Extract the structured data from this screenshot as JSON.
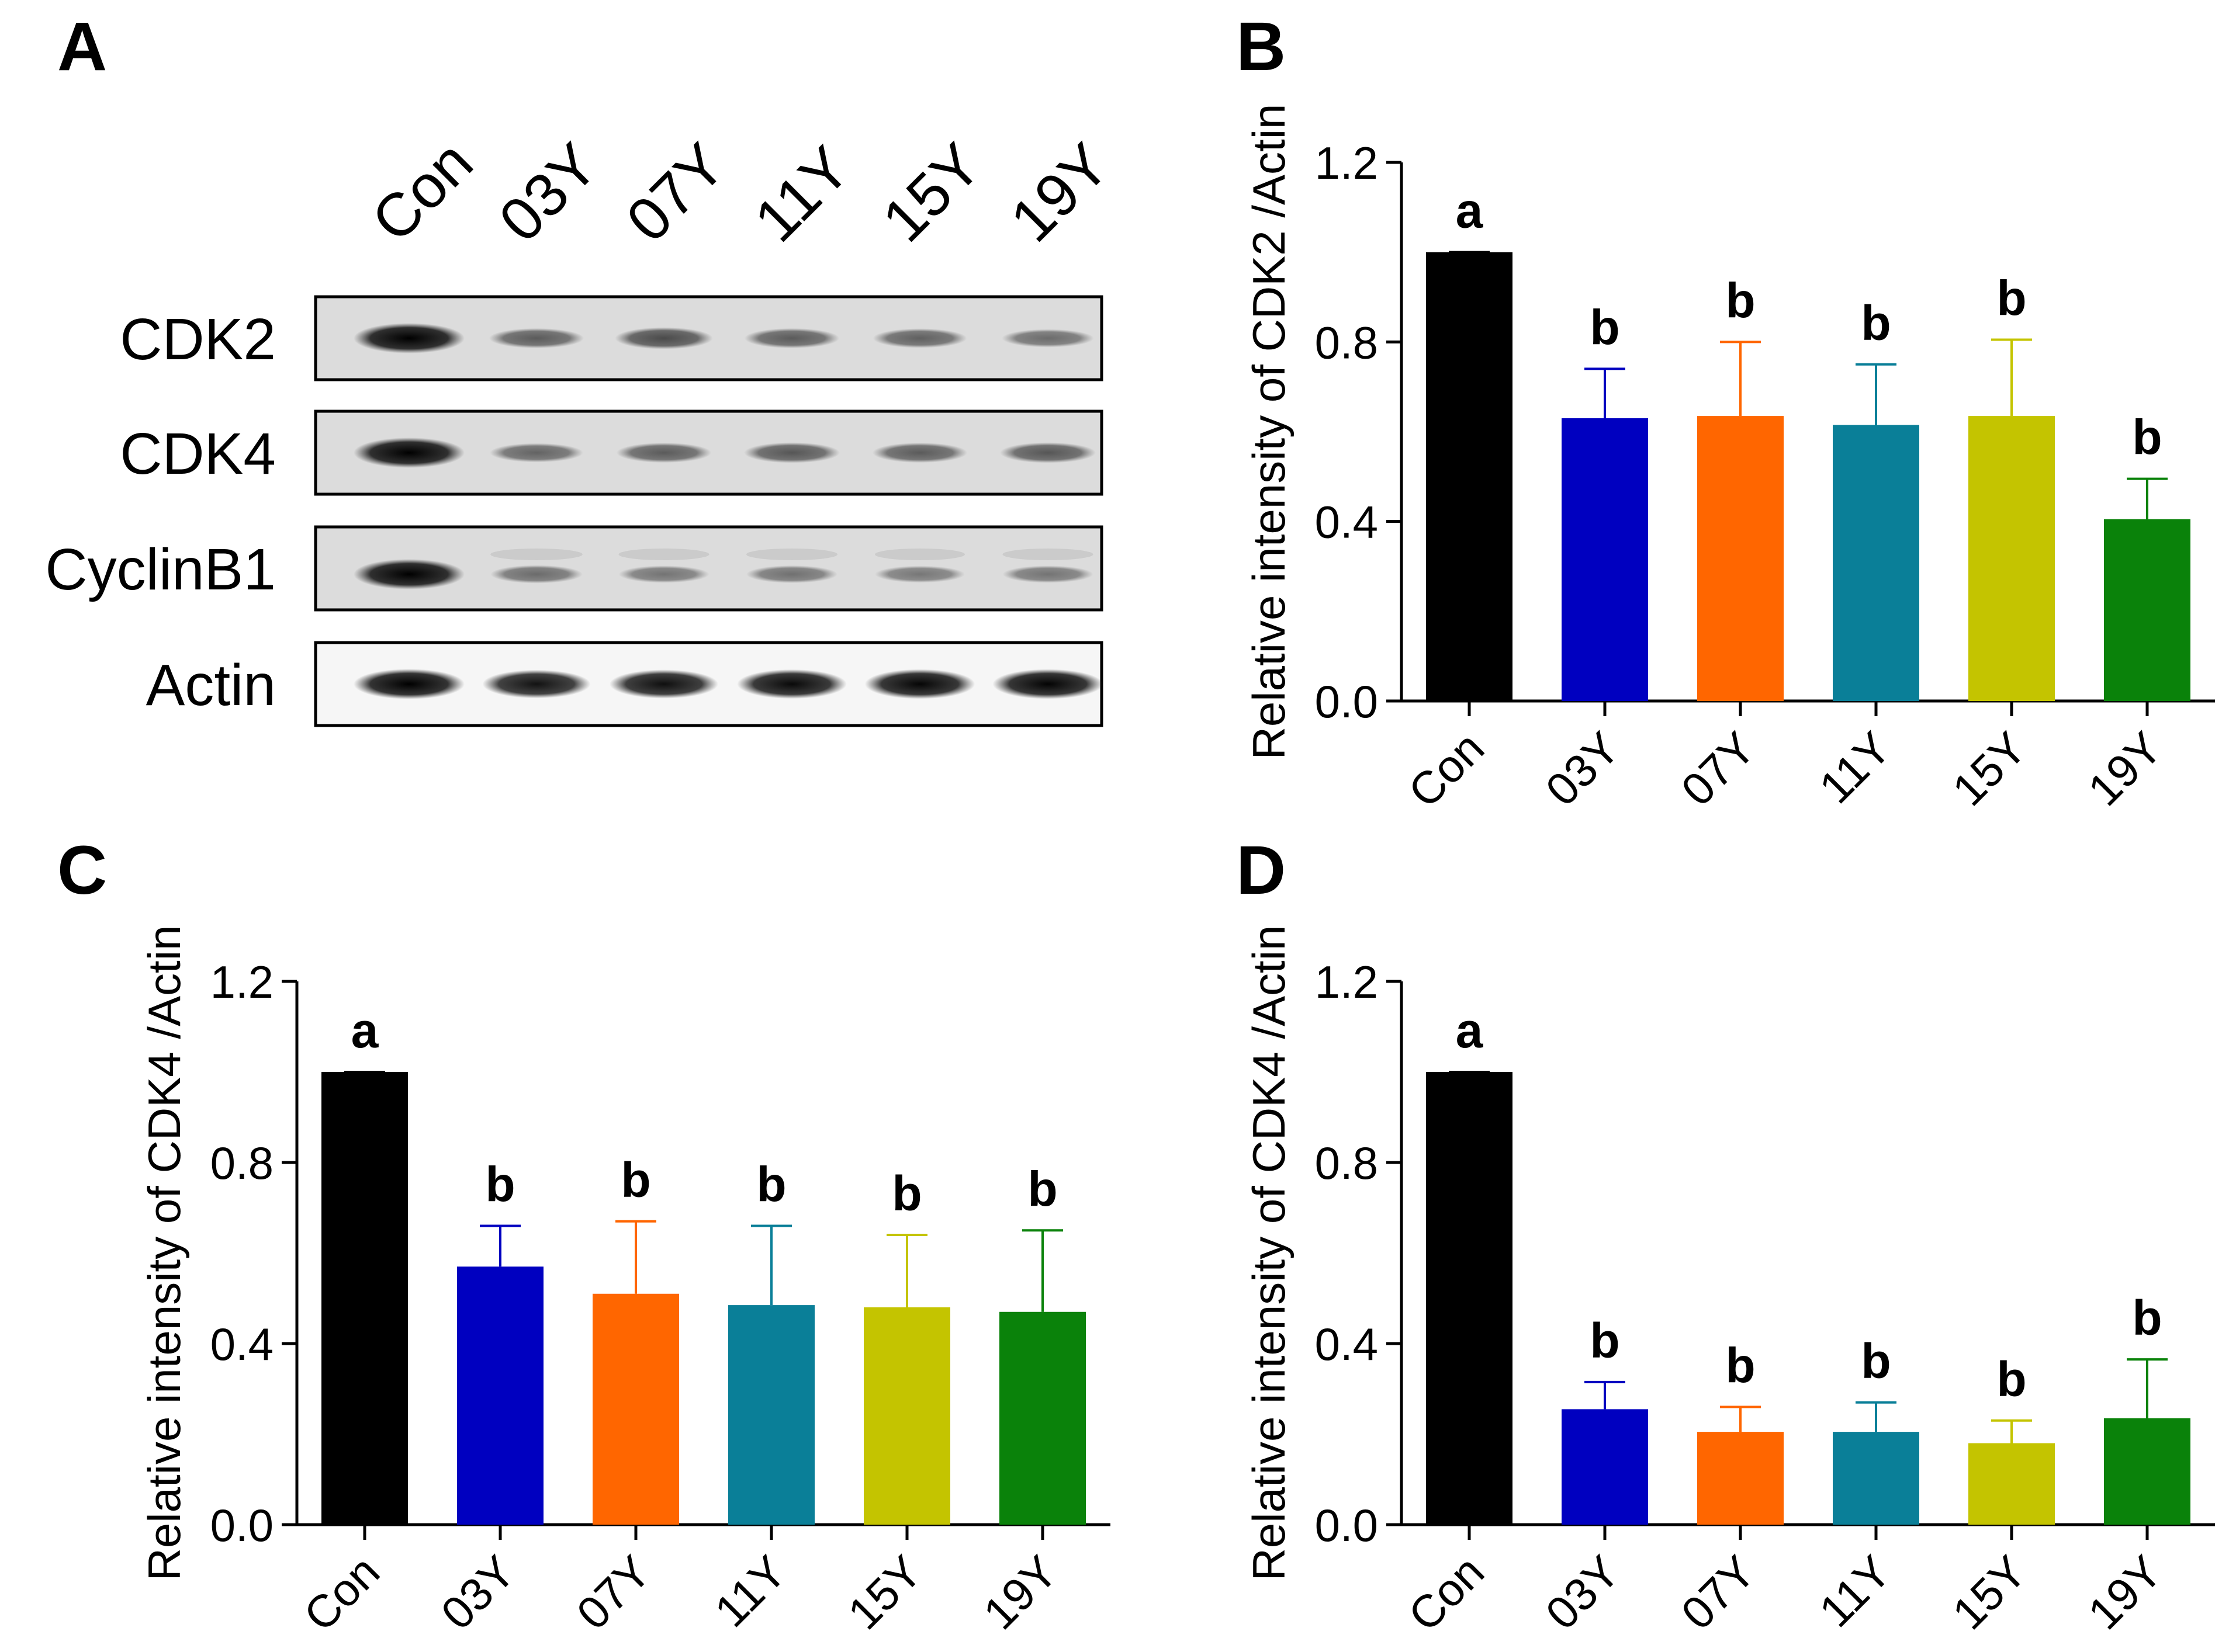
{
  "panel_labels": [
    "A",
    "B",
    "C",
    "D"
  ],
  "blot": {
    "lanes": [
      "Con",
      "03Y",
      "07Y",
      "11Y",
      "15Y",
      "19Y"
    ],
    "rows": [
      {
        "label": "CDK2",
        "intensity": [
          1.0,
          0.45,
          0.55,
          0.45,
          0.42,
          0.35
        ]
      },
      {
        "label": "CDK4",
        "intensity": [
          1.0,
          0.4,
          0.45,
          0.48,
          0.45,
          0.48
        ]
      },
      {
        "label": "CyclinB1",
        "intensity": [
          1.0,
          0.35,
          0.3,
          0.32,
          0.28,
          0.3
        ]
      },
      {
        "label": "Actin",
        "intensity": [
          1.0,
          0.9,
          0.92,
          0.95,
          0.97,
          0.98
        ]
      }
    ]
  },
  "colors": [
    "#000000",
    "#0000c0",
    "#ff6600",
    "#0a7f98",
    "#c4c400",
    "#0a820a"
  ],
  "chart_data": [
    {
      "panel": "B",
      "type": "bar",
      "ylabel": "Relative intensity of CDK2 /Actin",
      "categories": [
        "Con",
        "03Y",
        "07Y",
        "11Y",
        "15Y",
        "19Y"
      ],
      "values": [
        1.0,
        0.63,
        0.635,
        0.615,
        0.635,
        0.405
      ],
      "errors": [
        0.0,
        0.11,
        0.165,
        0.135,
        0.17,
        0.09
      ],
      "significance": [
        "a",
        "b",
        "b",
        "b",
        "b",
        "b"
      ],
      "ylim": [
        0,
        1.2
      ],
      "yticks": [
        "0.0",
        "0.4",
        "0.8",
        "1.2"
      ]
    },
    {
      "panel": "C",
      "type": "bar",
      "ylabel": "Relative intensity of CDK4 /Actin",
      "categories": [
        "Con",
        "03Y",
        "07Y",
        "11Y",
        "15Y",
        "19Y"
      ],
      "values": [
        1.0,
        0.57,
        0.51,
        0.485,
        0.48,
        0.47
      ],
      "errors": [
        0.0,
        0.09,
        0.16,
        0.175,
        0.16,
        0.18
      ],
      "significance": [
        "a",
        "b",
        "b",
        "b",
        "b",
        "b"
      ],
      "ylim": [
        0,
        1.2
      ],
      "yticks": [
        "0.0",
        "0.4",
        "0.8",
        "1.2"
      ]
    },
    {
      "panel": "D",
      "type": "bar",
      "ylabel": "Relative intensity of CDK4 /Actin",
      "categories": [
        "Con",
        "03Y",
        "07Y",
        "11Y",
        "15Y",
        "19Y"
      ],
      "values": [
        1.0,
        0.255,
        0.205,
        0.205,
        0.18,
        0.235
      ],
      "errors": [
        0.0,
        0.06,
        0.055,
        0.065,
        0.05,
        0.13
      ],
      "significance": [
        "a",
        "b",
        "b",
        "b",
        "b",
        "b"
      ],
      "ylim": [
        0,
        1.2
      ],
      "yticks": [
        "0.0",
        "0.4",
        "0.8",
        "1.2"
      ]
    }
  ]
}
